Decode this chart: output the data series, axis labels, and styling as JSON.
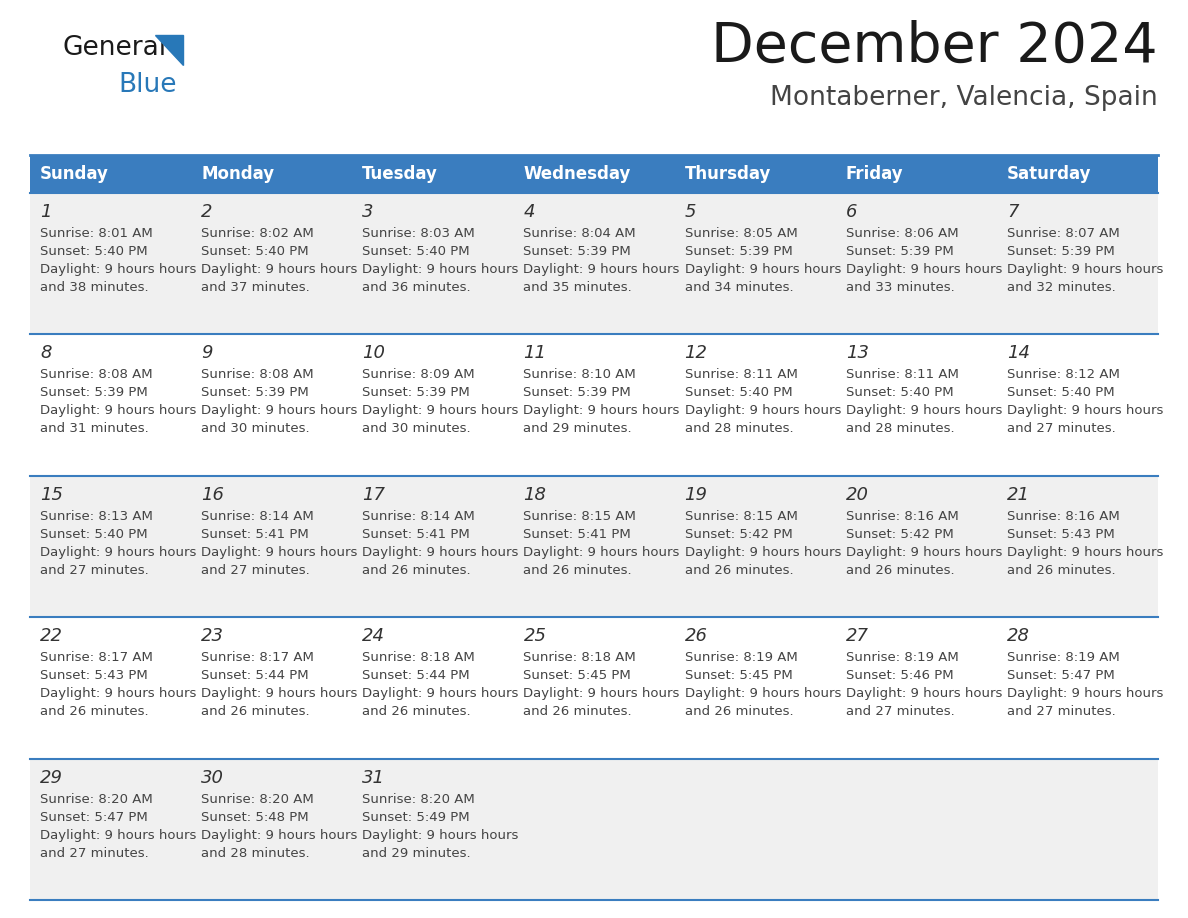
{
  "title": "December 2024",
  "subtitle": "Montaberner, Valencia, Spain",
  "header_bg_color": "#3a7dbf",
  "header_text_color": "#ffffff",
  "days_of_week": [
    "Sunday",
    "Monday",
    "Tuesday",
    "Wednesday",
    "Thursday",
    "Friday",
    "Saturday"
  ],
  "row_bg_even": "#f0f0f0",
  "row_bg_odd": "#ffffff",
  "cell_text_color": "#444444",
  "day_number_color": "#333333",
  "grid_line_color": "#3a7dbf",
  "title_color": "#1a1a1a",
  "subtitle_color": "#444444",
  "logo_general_color": "#1a1a1a",
  "logo_blue_color": "#2878b8",
  "weeks": [
    [
      {
        "day": 1,
        "sunrise": "8:01 AM",
        "sunset": "5:40 PM",
        "daylight": "9 hours and 38 minutes"
      },
      {
        "day": 2,
        "sunrise": "8:02 AM",
        "sunset": "5:40 PM",
        "daylight": "9 hours and 37 minutes"
      },
      {
        "day": 3,
        "sunrise": "8:03 AM",
        "sunset": "5:40 PM",
        "daylight": "9 hours and 36 minutes"
      },
      {
        "day": 4,
        "sunrise": "8:04 AM",
        "sunset": "5:39 PM",
        "daylight": "9 hours and 35 minutes"
      },
      {
        "day": 5,
        "sunrise": "8:05 AM",
        "sunset": "5:39 PM",
        "daylight": "9 hours and 34 minutes"
      },
      {
        "day": 6,
        "sunrise": "8:06 AM",
        "sunset": "5:39 PM",
        "daylight": "9 hours and 33 minutes"
      },
      {
        "day": 7,
        "sunrise": "8:07 AM",
        "sunset": "5:39 PM",
        "daylight": "9 hours and 32 minutes"
      }
    ],
    [
      {
        "day": 8,
        "sunrise": "8:08 AM",
        "sunset": "5:39 PM",
        "daylight": "9 hours and 31 minutes"
      },
      {
        "day": 9,
        "sunrise": "8:08 AM",
        "sunset": "5:39 PM",
        "daylight": "9 hours and 30 minutes"
      },
      {
        "day": 10,
        "sunrise": "8:09 AM",
        "sunset": "5:39 PM",
        "daylight": "9 hours and 30 minutes"
      },
      {
        "day": 11,
        "sunrise": "8:10 AM",
        "sunset": "5:39 PM",
        "daylight": "9 hours and 29 minutes"
      },
      {
        "day": 12,
        "sunrise": "8:11 AM",
        "sunset": "5:40 PM",
        "daylight": "9 hours and 28 minutes"
      },
      {
        "day": 13,
        "sunrise": "8:11 AM",
        "sunset": "5:40 PM",
        "daylight": "9 hours and 28 minutes"
      },
      {
        "day": 14,
        "sunrise": "8:12 AM",
        "sunset": "5:40 PM",
        "daylight": "9 hours and 27 minutes"
      }
    ],
    [
      {
        "day": 15,
        "sunrise": "8:13 AM",
        "sunset": "5:40 PM",
        "daylight": "9 hours and 27 minutes"
      },
      {
        "day": 16,
        "sunrise": "8:14 AM",
        "sunset": "5:41 PM",
        "daylight": "9 hours and 27 minutes"
      },
      {
        "day": 17,
        "sunrise": "8:14 AM",
        "sunset": "5:41 PM",
        "daylight": "9 hours and 26 minutes"
      },
      {
        "day": 18,
        "sunrise": "8:15 AM",
        "sunset": "5:41 PM",
        "daylight": "9 hours and 26 minutes"
      },
      {
        "day": 19,
        "sunrise": "8:15 AM",
        "sunset": "5:42 PM",
        "daylight": "9 hours and 26 minutes"
      },
      {
        "day": 20,
        "sunrise": "8:16 AM",
        "sunset": "5:42 PM",
        "daylight": "9 hours and 26 minutes"
      },
      {
        "day": 21,
        "sunrise": "8:16 AM",
        "sunset": "5:43 PM",
        "daylight": "9 hours and 26 minutes"
      }
    ],
    [
      {
        "day": 22,
        "sunrise": "8:17 AM",
        "sunset": "5:43 PM",
        "daylight": "9 hours and 26 minutes"
      },
      {
        "day": 23,
        "sunrise": "8:17 AM",
        "sunset": "5:44 PM",
        "daylight": "9 hours and 26 minutes"
      },
      {
        "day": 24,
        "sunrise": "8:18 AM",
        "sunset": "5:44 PM",
        "daylight": "9 hours and 26 minutes"
      },
      {
        "day": 25,
        "sunrise": "8:18 AM",
        "sunset": "5:45 PM",
        "daylight": "9 hours and 26 minutes"
      },
      {
        "day": 26,
        "sunrise": "8:19 AM",
        "sunset": "5:45 PM",
        "daylight": "9 hours and 26 minutes"
      },
      {
        "day": 27,
        "sunrise": "8:19 AM",
        "sunset": "5:46 PM",
        "daylight": "9 hours and 27 minutes"
      },
      {
        "day": 28,
        "sunrise": "8:19 AM",
        "sunset": "5:47 PM",
        "daylight": "9 hours and 27 minutes"
      }
    ],
    [
      {
        "day": 29,
        "sunrise": "8:20 AM",
        "sunset": "5:47 PM",
        "daylight": "9 hours and 27 minutes"
      },
      {
        "day": 30,
        "sunrise": "8:20 AM",
        "sunset": "5:48 PM",
        "daylight": "9 hours and 28 minutes"
      },
      {
        "day": 31,
        "sunrise": "8:20 AM",
        "sunset": "5:49 PM",
        "daylight": "9 hours and 29 minutes"
      },
      null,
      null,
      null,
      null
    ]
  ]
}
